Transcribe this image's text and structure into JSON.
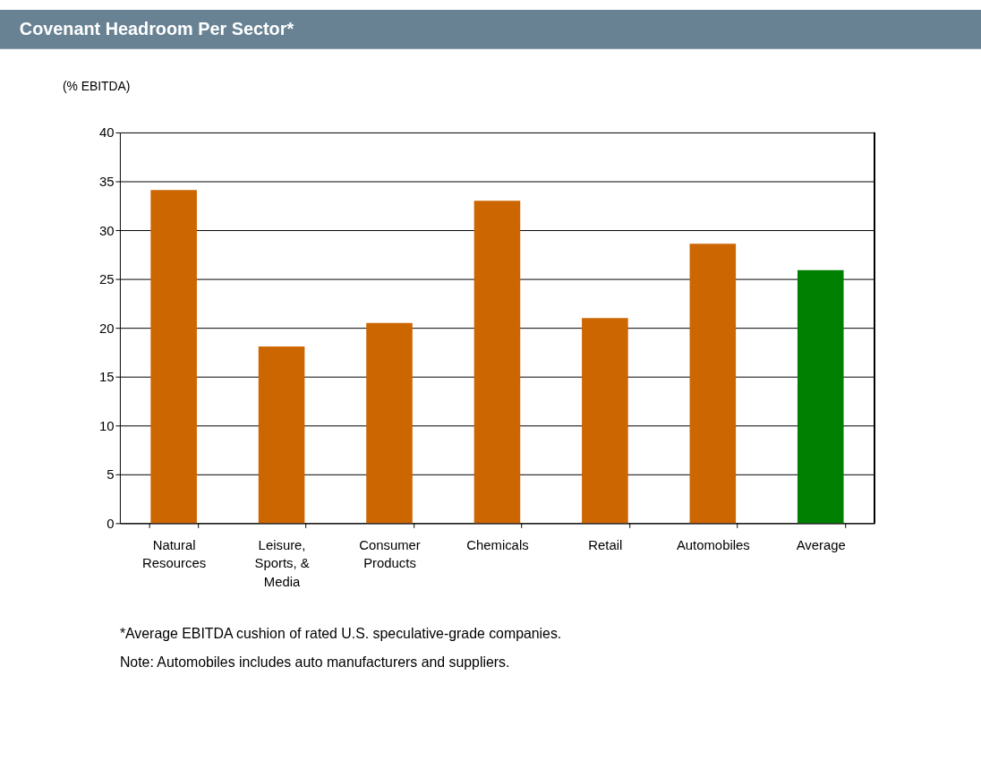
{
  "chart_data": {
    "type": "bar",
    "title": "Covenant Headroom Per Sector*",
    "ylabel": "(% EBITDA)",
    "categories": [
      "Natural Resources",
      "Leisure, Sports, & Media",
      "Consumer Products",
      "Chemicals",
      "Retail",
      "Automobiles",
      "Average"
    ],
    "values": [
      34.1,
      18.1,
      20.5,
      33.0,
      21.0,
      28.6,
      25.9
    ],
    "colors": [
      "#cc6600",
      "#cc6600",
      "#cc6600",
      "#cc6600",
      "#cc6600",
      "#cc6600",
      "#008000"
    ],
    "ylim": [
      0,
      40
    ],
    "yticks": [
      0,
      5,
      10,
      15,
      20,
      25,
      30,
      35,
      40
    ],
    "grid": "y",
    "annotations": [
      "*Average EBITDA cushion of rated U.S. speculative-grade companies.",
      "Note: Automobiles includes auto manufacturers and suppliers."
    ]
  }
}
